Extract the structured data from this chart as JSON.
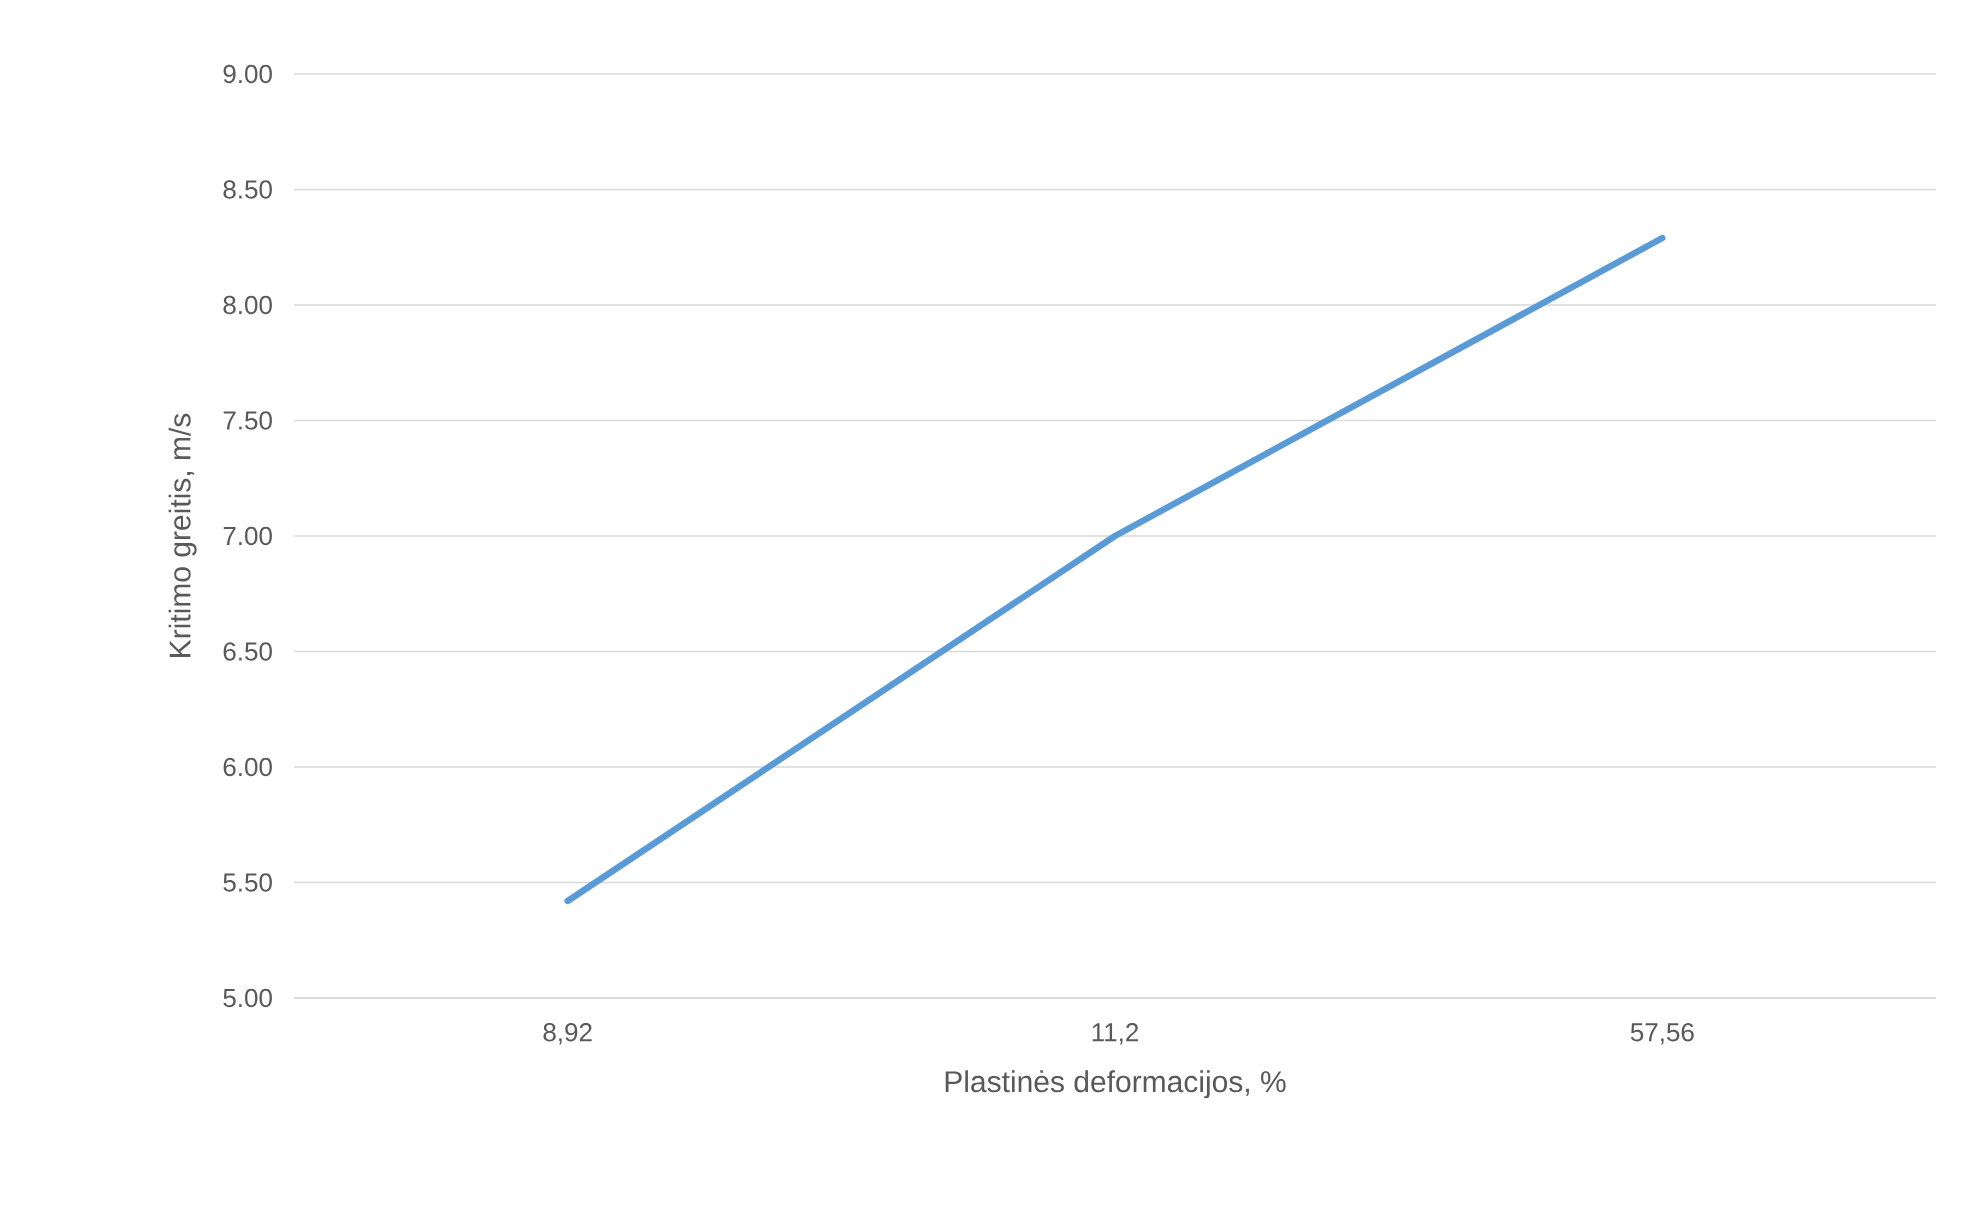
{
  "chart_data": {
    "type": "line",
    "xlabel": "Plastinės deformacijos, %",
    "ylabel": "Kritimo greitis, m/s",
    "categories": [
      "8,92",
      "11,2",
      "57,56"
    ],
    "series": [
      {
        "color": "#5b9bd5",
        "values": [
          5.42,
          7.0,
          8.29
        ]
      }
    ],
    "ylim": [
      5,
      9
    ],
    "yticks": [
      {
        "value": 5,
        "label": "5.00"
      },
      {
        "value": 5.5,
        "label": "5.50"
      },
      {
        "value": 6,
        "label": "6.00"
      },
      {
        "value": 6.5,
        "label": "6.50"
      },
      {
        "value": 7,
        "label": "7.00"
      },
      {
        "value": 7.5,
        "label": "7.50"
      },
      {
        "value": 8,
        "label": "8.00"
      },
      {
        "value": 8.5,
        "label": "8.50"
      },
      {
        "value": 9,
        "label": "9.00"
      }
    ],
    "grid": "y",
    "marker": "none",
    "line_style": "solid"
  }
}
